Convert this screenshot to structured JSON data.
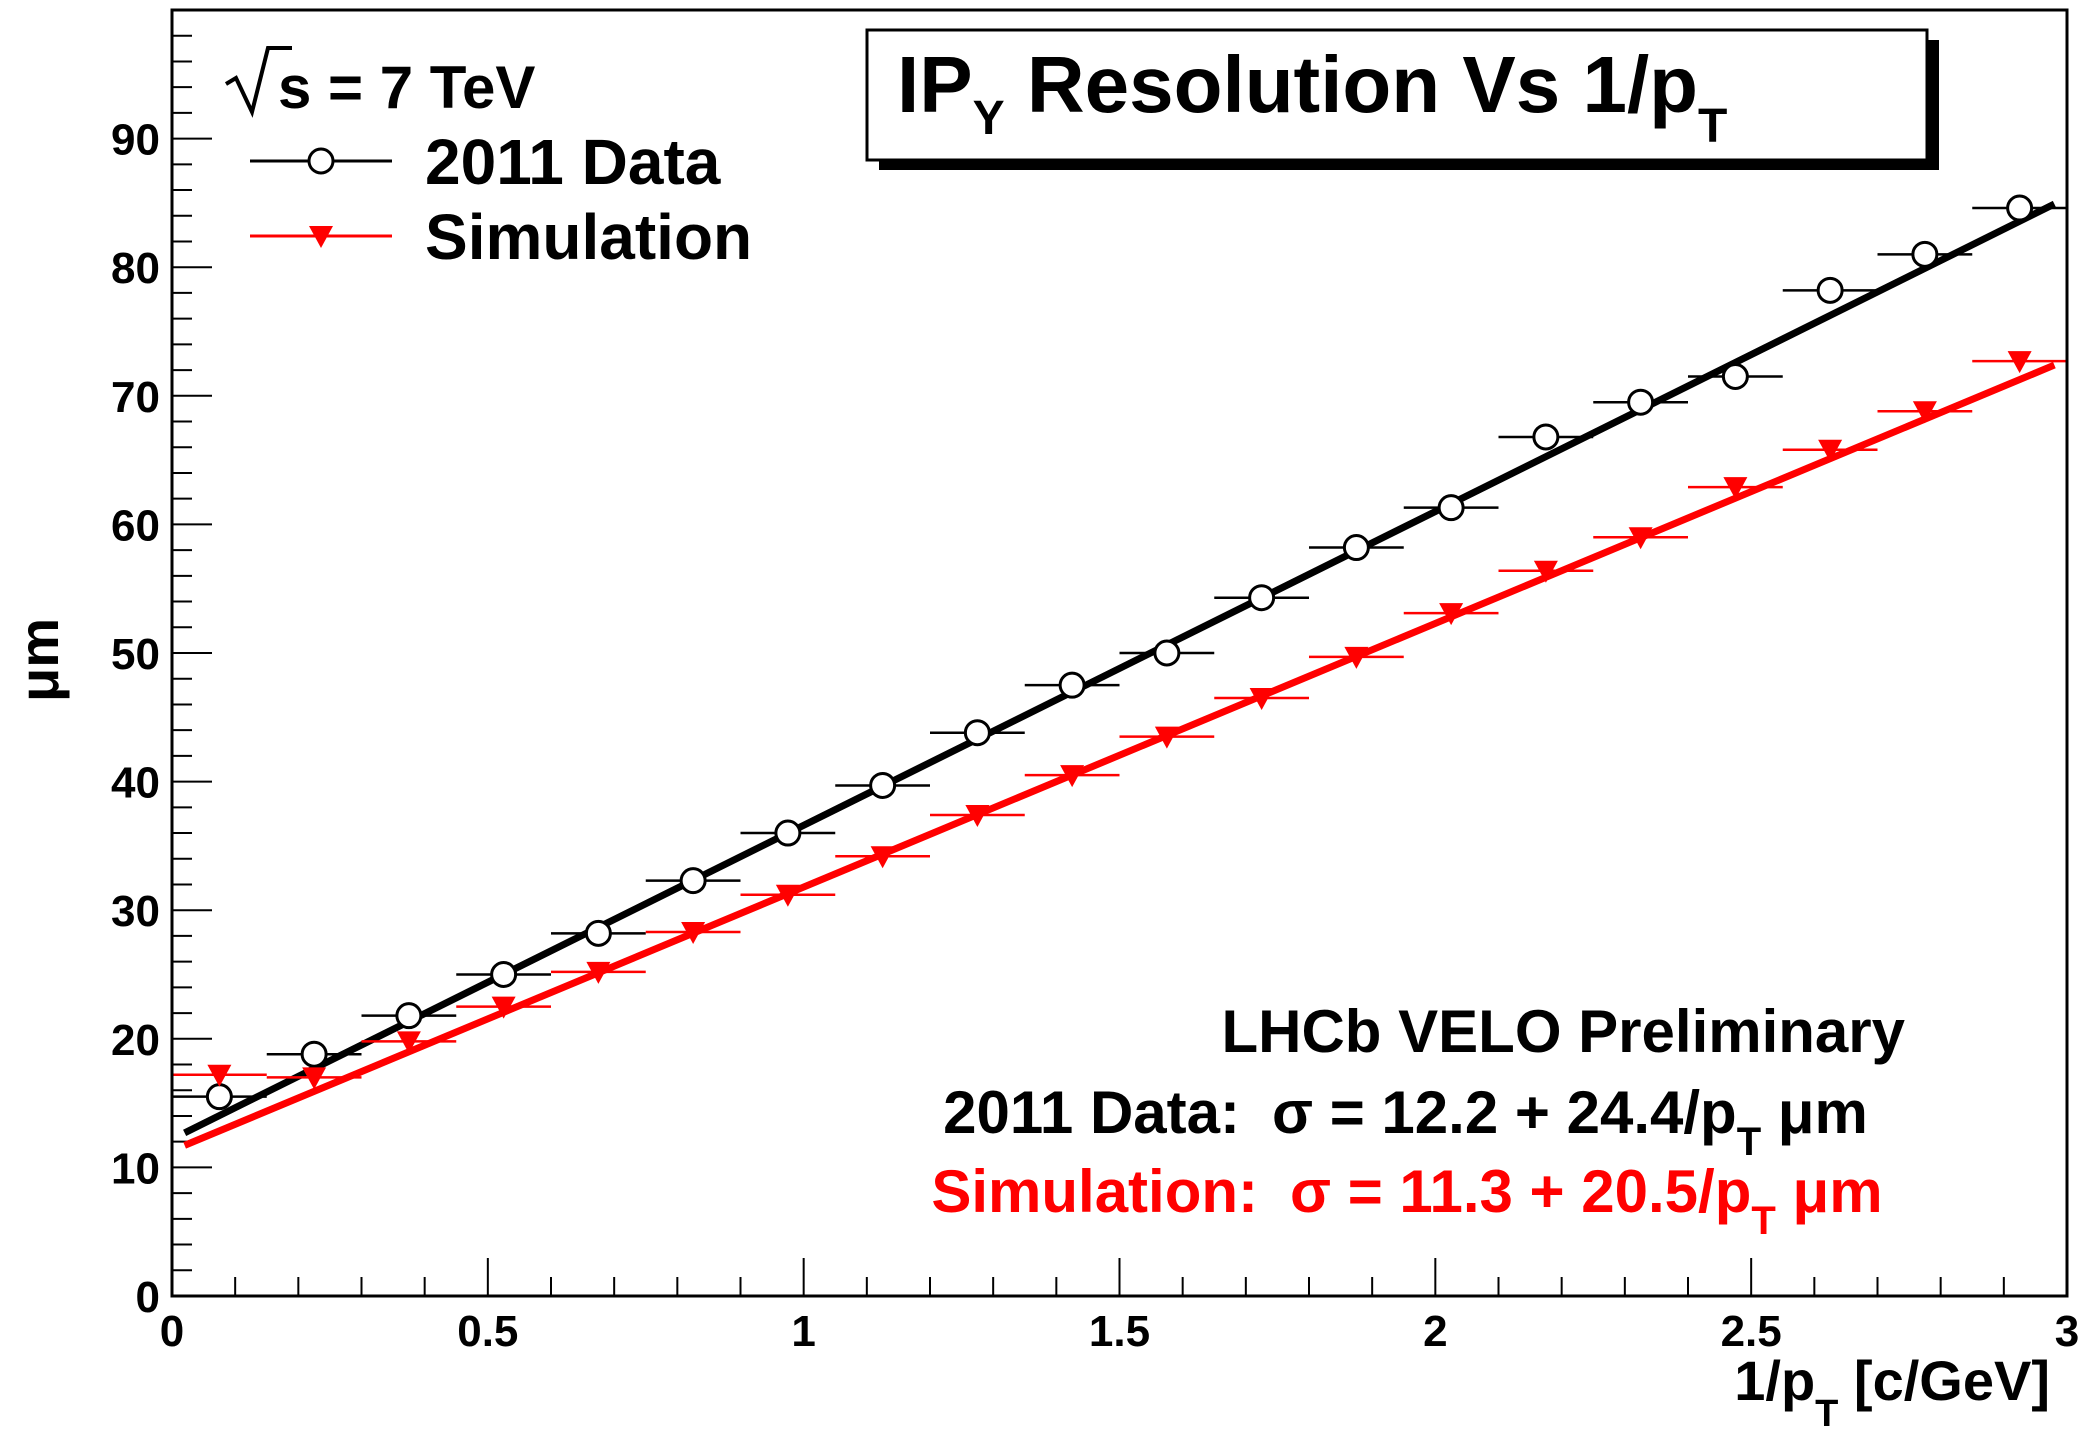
{
  "chart_data": {
    "type": "scatter",
    "title": {
      "main": "IP",
      "sub": "Y",
      "rest": " Resolution Vs 1/p",
      "sub2": "T"
    },
    "xlabel": {
      "pre": "1/p",
      "sub": "T",
      "post": " [c/GeV]"
    },
    "ylabel": "μm",
    "xlim": [
      0,
      3
    ],
    "ylim": [
      0,
      100
    ],
    "x_ticks": [
      0,
      0.5,
      1,
      1.5,
      2,
      2.5,
      3
    ],
    "x_tick_labels": [
      "0",
      "0.5",
      "1",
      "1.5",
      "2",
      "2.5",
      "3"
    ],
    "y_ticks": [
      0,
      10,
      20,
      30,
      40,
      50,
      60,
      70,
      80,
      90
    ],
    "y_tick_labels": [
      "0",
      "10",
      "20",
      "30",
      "40",
      "50",
      "60",
      "70",
      "80",
      "90"
    ],
    "grid": false,
    "legend_position": "top-left",
    "energy_label": {
      "sqrt": "s",
      "rest": " = 7 TeV"
    },
    "bin_half_width": 0.075,
    "series": [
      {
        "name": "2011 Data",
        "color": "#000000",
        "marker": "open-circle",
        "x": [
          0.075,
          0.225,
          0.375,
          0.525,
          0.675,
          0.825,
          0.975,
          1.125,
          1.275,
          1.425,
          1.575,
          1.725,
          1.875,
          2.025,
          2.175,
          2.325,
          2.475,
          2.625,
          2.775,
          2.925
        ],
        "y": [
          15.5,
          18.8,
          21.8,
          25.0,
          28.2,
          32.3,
          36.0,
          39.7,
          43.8,
          47.5,
          50.0,
          54.3,
          58.2,
          61.3,
          66.8,
          69.5,
          71.5,
          78.2,
          81.0,
          84.6
        ],
        "fit": {
          "intercept": 12.2,
          "slope": 24.4,
          "x_range": [
            0.02,
            2.98
          ]
        }
      },
      {
        "name": "Simulation",
        "color": "#ff0000",
        "marker": "filled-triangle-down",
        "x": [
          0.075,
          0.225,
          0.375,
          0.525,
          0.675,
          0.825,
          0.975,
          1.125,
          1.275,
          1.425,
          1.575,
          1.725,
          1.875,
          2.025,
          2.175,
          2.325,
          2.475,
          2.625,
          2.775,
          2.925
        ],
        "y": [
          17.2,
          17.0,
          19.8,
          22.5,
          25.2,
          28.3,
          31.2,
          34.2,
          37.4,
          40.5,
          43.5,
          46.5,
          49.7,
          53.1,
          56.4,
          59.0,
          62.9,
          65.8,
          68.8,
          72.7
        ],
        "fit": {
          "intercept": 11.3,
          "slope": 20.5,
          "x_range": [
            0.02,
            2.98
          ]
        }
      }
    ],
    "annotations": {
      "experiment": "LHCb VELO Preliminary",
      "data_fit": {
        "label": "2011 Data:",
        "formula": "σ = 12.2 + 24.4/p",
        "sub": "T",
        "unit": " μm"
      },
      "sim_fit": {
        "label": "Simulation:",
        "formula": "σ = 11.3 + 20.5/p",
        "sub": "T",
        "unit": " μm"
      }
    }
  }
}
